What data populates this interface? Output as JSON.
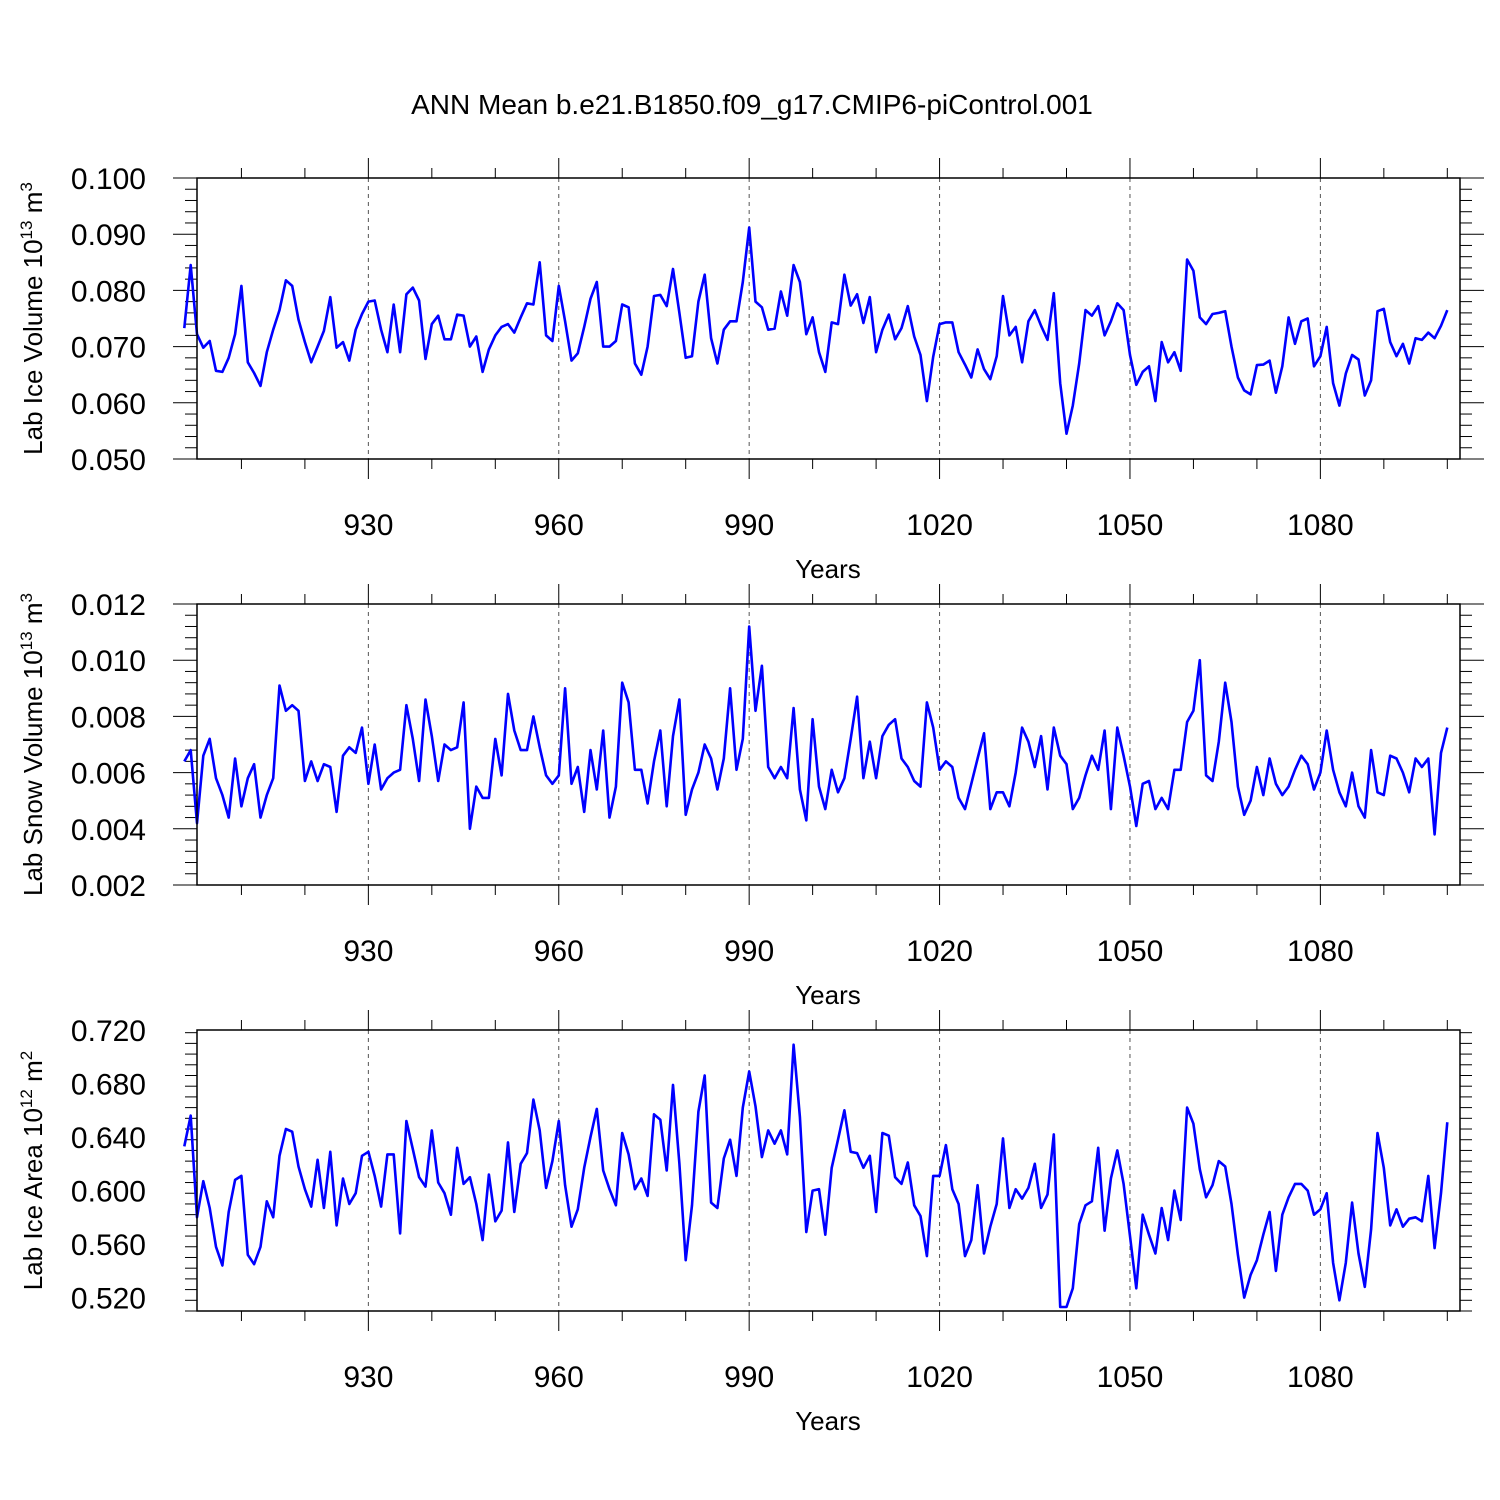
{
  "title": "ANN Mean b.e21.B1850.f09_g17.CMIP6-piControl.001",
  "colors": {
    "line": "#0000ff",
    "frame": "#000000",
    "grid": "#555555"
  },
  "chart_data": [
    {
      "type": "line",
      "ylabel_main": "Lab Ice Volume 10",
      "ylabel_sup": "13",
      "ylabel_unit": " m",
      "ylabel_unit_sup": "3",
      "xlabel": "Years",
      "xlim": [
        903,
        1102
      ],
      "ylim": [
        0.05,
        0.1
      ],
      "x_ticks": [
        930,
        960,
        990,
        1020,
        1050,
        1080
      ],
      "x_tick_labels": [
        "930",
        "960",
        "990",
        "1020",
        "1050",
        "1080"
      ],
      "y_ticks": [
        0.05,
        0.06,
        0.07,
        0.08,
        0.09,
        0.1
      ],
      "y_tick_labels": [
        "0.050",
        "0.060",
        "0.070",
        "0.080",
        "0.090",
        "0.100"
      ],
      "x_start": 901,
      "series": [
        {
          "values": [
            0.0733,
            0.0845,
            0.0722,
            0.0698,
            0.071,
            0.0657,
            0.0655,
            0.068,
            0.0722,
            0.0808,
            0.0672,
            0.0653,
            0.063,
            0.069,
            0.073,
            0.0765,
            0.0818,
            0.0808,
            0.0748,
            0.0708,
            0.0672,
            0.07,
            0.0728,
            0.0788,
            0.0698,
            0.0708,
            0.0675,
            0.073,
            0.0758,
            0.078,
            0.0782,
            0.073,
            0.069,
            0.0775,
            0.069,
            0.0793,
            0.0805,
            0.0782,
            0.0678,
            0.074,
            0.0755,
            0.0713,
            0.0713,
            0.0757,
            0.0755,
            0.07,
            0.0718,
            0.0655,
            0.0695,
            0.072,
            0.0735,
            0.074,
            0.0725,
            0.0752,
            0.0777,
            0.0775,
            0.085,
            0.072,
            0.071,
            0.0808,
            0.0745,
            0.0675,
            0.0688,
            0.0735,
            0.0785,
            0.0815,
            0.07,
            0.07,
            0.071,
            0.0775,
            0.077,
            0.067,
            0.065,
            0.07,
            0.079,
            0.0792,
            0.0772,
            0.0838,
            0.076,
            0.068,
            0.0683,
            0.078,
            0.0828,
            0.0715,
            0.067,
            0.073,
            0.0745,
            0.0745,
            0.0815,
            0.0912,
            0.078,
            0.077,
            0.073,
            0.0732,
            0.0798,
            0.0755,
            0.0845,
            0.0815,
            0.0722,
            0.0752,
            0.069,
            0.0655,
            0.0743,
            0.074,
            0.0828,
            0.0773,
            0.0793,
            0.0742,
            0.0788,
            0.069,
            0.073,
            0.0757,
            0.0713,
            0.0733,
            0.0772,
            0.0718,
            0.0685,
            0.0603,
            0.0682,
            0.074,
            0.0743,
            0.0743,
            0.069,
            0.0668,
            0.0645,
            0.0695,
            0.066,
            0.0642,
            0.0683,
            0.079,
            0.072,
            0.0735,
            0.0672,
            0.0745,
            0.0765,
            0.0737,
            0.0712,
            0.0795,
            0.0635,
            0.0545,
            0.0595,
            0.067,
            0.0765,
            0.0755,
            0.0772,
            0.072,
            0.0745,
            0.0777,
            0.0765,
            0.0685,
            0.0632,
            0.0655,
            0.0665,
            0.0603,
            0.0708,
            0.0672,
            0.069,
            0.0657,
            0.0855,
            0.0835,
            0.0752,
            0.074,
            0.0758,
            0.076,
            0.0763,
            0.07,
            0.0645,
            0.0622,
            0.0615,
            0.0667,
            0.0668,
            0.0675,
            0.0618,
            0.0665,
            0.0752,
            0.0705,
            0.0745,
            0.075,
            0.0665,
            0.0683,
            0.0735,
            0.0635,
            0.0595,
            0.0652,
            0.0685,
            0.0677,
            0.0613,
            0.064,
            0.0763,
            0.0767,
            0.0708,
            0.0683,
            0.0705,
            0.067,
            0.0715,
            0.0712,
            0.0725,
            0.0715,
            0.0737,
            0.0765
          ]
        }
      ]
    },
    {
      "type": "line",
      "ylabel_main": "Lab Snow Volume 10",
      "ylabel_sup": "13",
      "ylabel_unit": " m",
      "ylabel_unit_sup": "3",
      "xlabel": "Years",
      "xlim": [
        903,
        1102
      ],
      "ylim": [
        0.002,
        0.012
      ],
      "x_ticks": [
        930,
        960,
        990,
        1020,
        1050,
        1080
      ],
      "x_tick_labels": [
        "930",
        "960",
        "990",
        "1020",
        "1050",
        "1080"
      ],
      "y_ticks": [
        0.002,
        0.004,
        0.006,
        0.008,
        0.01,
        0.012
      ],
      "y_tick_labels": [
        "0.002",
        "0.004",
        "0.006",
        "0.008",
        "0.010",
        "0.012"
      ],
      "x_start": 901,
      "series": [
        {
          "values": [
            0.0064,
            0.0068,
            0.0042,
            0.0066,
            0.0072,
            0.0058,
            0.0052,
            0.0044,
            0.0065,
            0.0048,
            0.0058,
            0.0063,
            0.0044,
            0.0052,
            0.0058,
            0.0091,
            0.0082,
            0.0084,
            0.0082,
            0.0057,
            0.0064,
            0.0057,
            0.0063,
            0.0062,
            0.0046,
            0.0066,
            0.0069,
            0.0067,
            0.0076,
            0.0056,
            0.007,
            0.0054,
            0.0058,
            0.006,
            0.0061,
            0.0084,
            0.0072,
            0.0057,
            0.0086,
            0.0073,
            0.0057,
            0.007,
            0.0068,
            0.0069,
            0.0085,
            0.004,
            0.0055,
            0.0051,
            0.0051,
            0.0072,
            0.0059,
            0.0088,
            0.0075,
            0.0068,
            0.0068,
            0.008,
            0.0069,
            0.0059,
            0.0056,
            0.0059,
            0.009,
            0.0056,
            0.0062,
            0.0046,
            0.0068,
            0.0054,
            0.0075,
            0.0044,
            0.0055,
            0.0092,
            0.0085,
            0.0061,
            0.0061,
            0.0049,
            0.0064,
            0.0075,
            0.0048,
            0.0073,
            0.0086,
            0.0045,
            0.0054,
            0.006,
            0.007,
            0.0065,
            0.0054,
            0.0065,
            0.009,
            0.0061,
            0.0072,
            0.0112,
            0.0082,
            0.0098,
            0.0062,
            0.0058,
            0.0062,
            0.0058,
            0.0083,
            0.0054,
            0.0043,
            0.0079,
            0.0055,
            0.0047,
            0.0061,
            0.0053,
            0.0058,
            0.0072,
            0.0087,
            0.0058,
            0.0071,
            0.0058,
            0.0073,
            0.0077,
            0.0079,
            0.0065,
            0.0062,
            0.0057,
            0.0055,
            0.0085,
            0.0076,
            0.0061,
            0.0064,
            0.0062,
            0.0051,
            0.0047,
            0.0056,
            0.0065,
            0.0074,
            0.0047,
            0.0053,
            0.0053,
            0.0048,
            0.006,
            0.0076,
            0.0071,
            0.0062,
            0.0073,
            0.0054,
            0.0076,
            0.0066,
            0.0063,
            0.0047,
            0.0051,
            0.0059,
            0.0066,
            0.0061,
            0.0075,
            0.0047,
            0.0076,
            0.0066,
            0.0055,
            0.0041,
            0.0056,
            0.0057,
            0.0047,
            0.0051,
            0.0047,
            0.0061,
            0.0061,
            0.0078,
            0.0082,
            0.01,
            0.0059,
            0.0057,
            0.0071,
            0.0092,
            0.0078,
            0.0055,
            0.0045,
            0.005,
            0.0062,
            0.0052,
            0.0065,
            0.0056,
            0.0052,
            0.0055,
            0.0061,
            0.0066,
            0.0063,
            0.0054,
            0.006,
            0.0075,
            0.0061,
            0.0053,
            0.0048,
            0.006,
            0.0048,
            0.0044,
            0.0068,
            0.0053,
            0.0052,
            0.0066,
            0.0065,
            0.006,
            0.0053,
            0.0065,
            0.0062,
            0.0065,
            0.0038,
            0.0067,
            0.0076
          ]
        }
      ]
    },
    {
      "type": "line",
      "ylabel_main": "Lab Ice Area 10",
      "ylabel_sup": "12",
      "ylabel_unit": " m",
      "ylabel_unit_sup": "2",
      "xlabel": "Years",
      "xlim": [
        903,
        1102
      ],
      "ylim": [
        0.51,
        0.72
      ],
      "x_ticks": [
        930,
        960,
        990,
        1020,
        1050,
        1080
      ],
      "x_tick_labels": [
        "930",
        "960",
        "990",
        "1020",
        "1050",
        "1080"
      ],
      "y_ticks": [
        0.52,
        0.56,
        0.6,
        0.64,
        0.68,
        0.72
      ],
      "y_tick_labels": [
        "0.520",
        "0.560",
        "0.600",
        "0.640",
        "0.680",
        "0.720"
      ],
      "x_start": 901,
      "series": [
        {
          "values": [
            0.633,
            0.656,
            0.58,
            0.607,
            0.587,
            0.558,
            0.544,
            0.584,
            0.608,
            0.611,
            0.552,
            0.545,
            0.558,
            0.592,
            0.58,
            0.626,
            0.646,
            0.644,
            0.618,
            0.601,
            0.588,
            0.623,
            0.587,
            0.629,
            0.574,
            0.609,
            0.59,
            0.598,
            0.626,
            0.629,
            0.611,
            0.588,
            0.627,
            0.627,
            0.568,
            0.652,
            0.631,
            0.61,
            0.603,
            0.645,
            0.606,
            0.598,
            0.582,
            0.632,
            0.605,
            0.61,
            0.59,
            0.563,
            0.612,
            0.577,
            0.585,
            0.636,
            0.584,
            0.62,
            0.628,
            0.668,
            0.645,
            0.602,
            0.622,
            0.652,
            0.604,
            0.573,
            0.586,
            0.617,
            0.64,
            0.661,
            0.615,
            0.601,
            0.589,
            0.643,
            0.627,
            0.601,
            0.609,
            0.596,
            0.657,
            0.653,
            0.615,
            0.679,
            0.62,
            0.548,
            0.589,
            0.659,
            0.686,
            0.591,
            0.587,
            0.624,
            0.638,
            0.611,
            0.662,
            0.689,
            0.663,
            0.625,
            0.645,
            0.635,
            0.645,
            0.627,
            0.709,
            0.655,
            0.569,
            0.6,
            0.601,
            0.567,
            0.617,
            0.638,
            0.66,
            0.629,
            0.628,
            0.617,
            0.626,
            0.584,
            0.643,
            0.641,
            0.61,
            0.605,
            0.621,
            0.589,
            0.581,
            0.551,
            0.611,
            0.611,
            0.634,
            0.601,
            0.59,
            0.551,
            0.563,
            0.604,
            0.553,
            0.573,
            0.59,
            0.639,
            0.587,
            0.601,
            0.594,
            0.602,
            0.62,
            0.587,
            0.597,
            0.642,
            0.513,
            0.513,
            0.527,
            0.575,
            0.589,
            0.592,
            0.632,
            0.57,
            0.609,
            0.63,
            0.605,
            0.566,
            0.527,
            0.582,
            0.567,
            0.553,
            0.587,
            0.563,
            0.6,
            0.578,
            0.662,
            0.65,
            0.616,
            0.595,
            0.604,
            0.622,
            0.618,
            0.59,
            0.552,
            0.52,
            0.537,
            0.548,
            0.567,
            0.584,
            0.54,
            0.582,
            0.595,
            0.605,
            0.605,
            0.6,
            0.582,
            0.586,
            0.598,
            0.546,
            0.518,
            0.546,
            0.591,
            0.553,
            0.528,
            0.571,
            0.643,
            0.617,
            0.574,
            0.586,
            0.573,
            0.579,
            0.58,
            0.577,
            0.611,
            0.557,
            0.598,
            0.651
          ]
        }
      ]
    }
  ]
}
